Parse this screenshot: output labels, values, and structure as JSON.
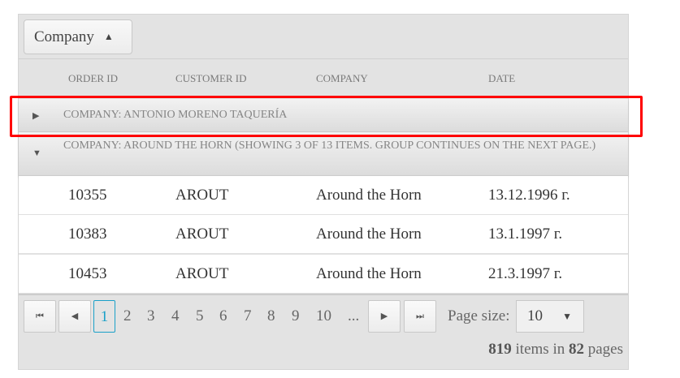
{
  "group_panel": {
    "button_label": "Company",
    "sort_icon": "triangle-up-icon"
  },
  "columns": [
    "ORDER ID",
    "CUSTOMER ID",
    "COMPANY",
    "DATE"
  ],
  "groups": [
    {
      "label": "COMPANY: ANTONIO MORENO TAQUERÍA",
      "expanded": false
    },
    {
      "label": "COMPANY: AROUND THE HORN (SHOWING 3 OF 13 ITEMS. GROUP CONTINUES ON THE NEXT PAGE.)",
      "expanded": true
    }
  ],
  "rows": [
    [
      "10355",
      "AROUT",
      "Around the Horn",
      "13.12.1996 г."
    ],
    [
      "10383",
      "AROUT",
      "Around the Horn",
      "13.1.1997 г."
    ],
    [
      "10453",
      "AROUT",
      "Around the Horn",
      "21.3.1997 г."
    ]
  ],
  "pager": {
    "pages": [
      "1",
      "2",
      "3",
      "4",
      "5",
      "6",
      "7",
      "8",
      "9",
      "10",
      "..."
    ],
    "current": "1",
    "page_size_label": "Page size:",
    "page_size": "10",
    "items": "819",
    "items_text": " items in ",
    "pages_count": "82",
    "pages_text": " pages"
  },
  "highlight_color": "#ff0000"
}
